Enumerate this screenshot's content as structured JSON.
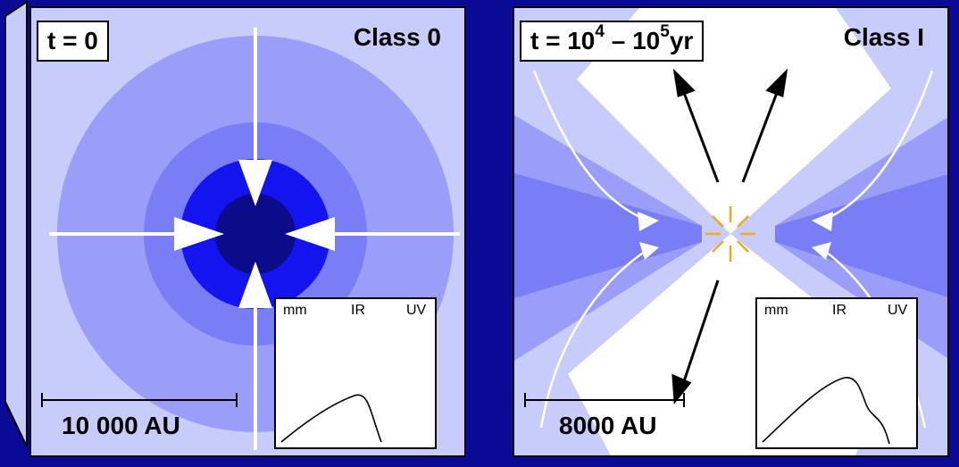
{
  "colors": {
    "background": "#0a0a96",
    "panel_fill": "#c8ccfa",
    "envelope_outer": "#9a9ef8",
    "envelope_mid": "#7a7ef6",
    "envelope_inner": "#1414f0",
    "core": "#0c0c8a",
    "star": "#f0a820"
  },
  "left_panel": {
    "time_label": "t = 0",
    "class_label": "Class 0",
    "scale_label": "10 000 AU",
    "sed": {
      "axis_labels": [
        "mm",
        "IR",
        "UV"
      ]
    }
  },
  "right_panel": {
    "time_prefix": "t = 10",
    "time_exp1": "4",
    "time_dash": " – 10",
    "time_exp2": "5",
    "time_unit": "yr",
    "class_label": "Class I",
    "scale_label": "8000 AU",
    "sed": {
      "axis_labels": [
        "mm",
        "IR",
        "UV"
      ]
    }
  }
}
